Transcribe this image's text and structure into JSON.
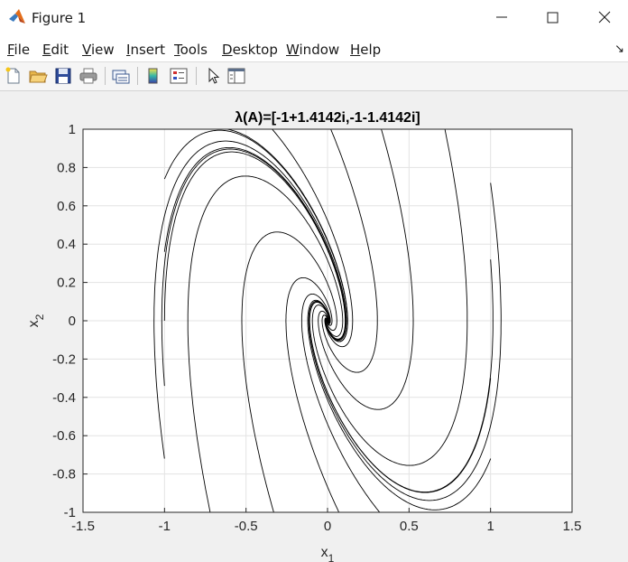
{
  "window": {
    "title": "Figure 1"
  },
  "menu": {
    "items": [
      "File",
      "Edit",
      "View",
      "Insert",
      "Tools",
      "Desktop",
      "Window",
      "Help"
    ],
    "overflow_glyph": "↘"
  },
  "toolbar": {
    "buttons": [
      "new-figure-icon",
      "open-file-icon",
      "save-icon",
      "print-icon",
      "link-plot-icon",
      "colorbar-icon",
      "legend-icon",
      "pointer-icon",
      "property-inspector-icon"
    ]
  },
  "chart_data": {
    "type": "line",
    "title": "λ(A)=[-1+1.4142i,-1-1.4142i]",
    "xlabel": "x1",
    "ylabel": "x2",
    "xlim": [
      -1.5,
      1.5
    ],
    "ylim": [
      -1,
      1
    ],
    "xticks": [
      "-1.5",
      "-1",
      "-0.5",
      "0",
      "0.5",
      "1",
      "1.5"
    ],
    "yticks": [
      "-1",
      "-0.8",
      "-0.6",
      "-0.4",
      "-0.2",
      "0",
      "0.2",
      "0.4",
      "0.6",
      "0.8",
      "1"
    ],
    "grid": true,
    "eigenvalues": {
      "real": -1,
      "imag": 1.4142
    },
    "trajectory_starts": [
      [
        -1,
        0.74
      ],
      [
        -1,
        0.36
      ],
      [
        -1,
        0
      ],
      [
        -1,
        -0.34
      ],
      [
        -1,
        -0.72
      ],
      [
        1,
        0.72
      ],
      [
        1,
        0.32
      ],
      [
        1,
        -0.3
      ],
      [
        1,
        -0.72
      ],
      [
        -0.72,
        -1
      ],
      [
        -0.33,
        -1
      ],
      [
        0.32,
        -1
      ],
      [
        0.07,
        -1
      ],
      [
        -0.72,
        1
      ],
      [
        -0.34,
        1
      ],
      [
        0.02,
        1
      ],
      [
        0.33,
        1
      ],
      [
        0.72,
        1
      ]
    ],
    "line_color": "#000000"
  }
}
